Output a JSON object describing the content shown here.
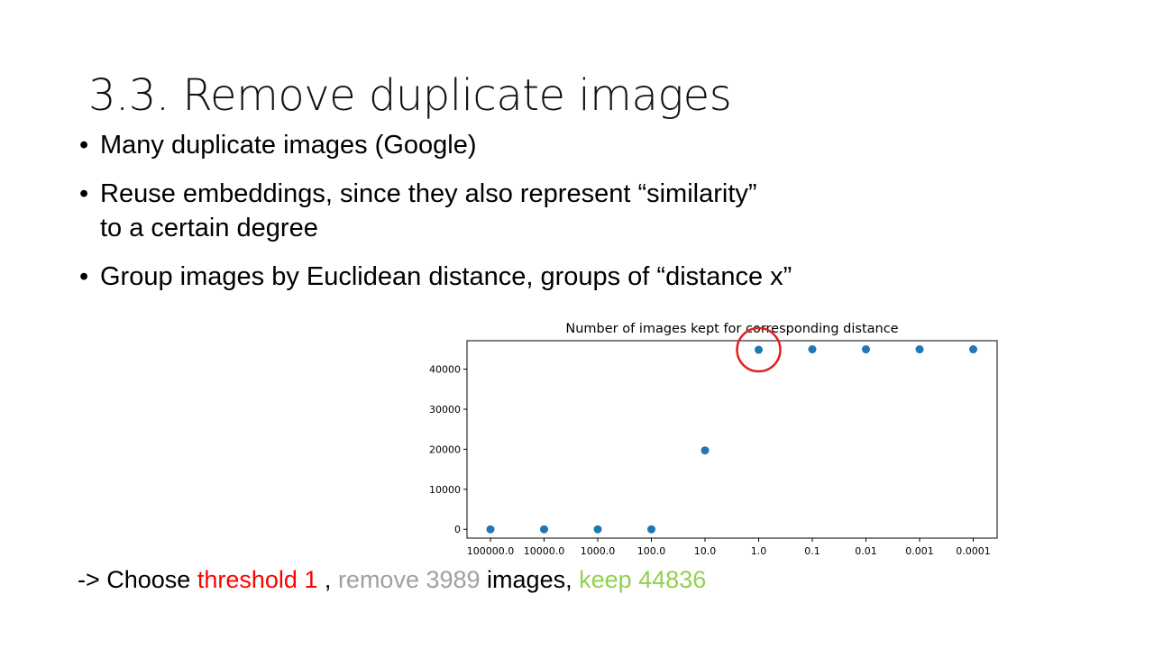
{
  "slide": {
    "title": "3.3. Remove duplicate images",
    "bullet_symbol": "•",
    "bullets": [
      "Many duplicate images (Google)",
      "Reuse embeddings, since they also represent “similarity”\nto a certain degree",
      "Group images by Euclidean distance, groups of “distance x”"
    ],
    "footer": {
      "prefix": "-> Choose ",
      "threshold": "threshold 1",
      "sep": " , ",
      "remove": "remove 3989",
      "images": " images, ",
      "keep": "keep 44836"
    }
  },
  "colors": {
    "threshold": "#ff0000",
    "remove": "#a0a0a0",
    "keep": "#92d050",
    "point": "#1f77b4",
    "highlight_circle": "#e02020"
  },
  "chart_data": {
    "type": "scatter",
    "title": "Number of images kept for corresponding distance",
    "xlabel": "",
    "ylabel": "",
    "categories": [
      "100000.0",
      "10000.0",
      "1000.0",
      "100.0",
      "10.0",
      "1.0",
      "0.1",
      "0.01",
      "0.001",
      "0.0001"
    ],
    "values": [
      0,
      0,
      0,
      0,
      19700,
      44836,
      44950,
      44950,
      44950,
      44950
    ],
    "yticks": [
      0,
      10000,
      20000,
      30000,
      40000
    ],
    "ylim": [
      -2200,
      47100
    ],
    "grid": false,
    "highlight_category": "1.0"
  }
}
